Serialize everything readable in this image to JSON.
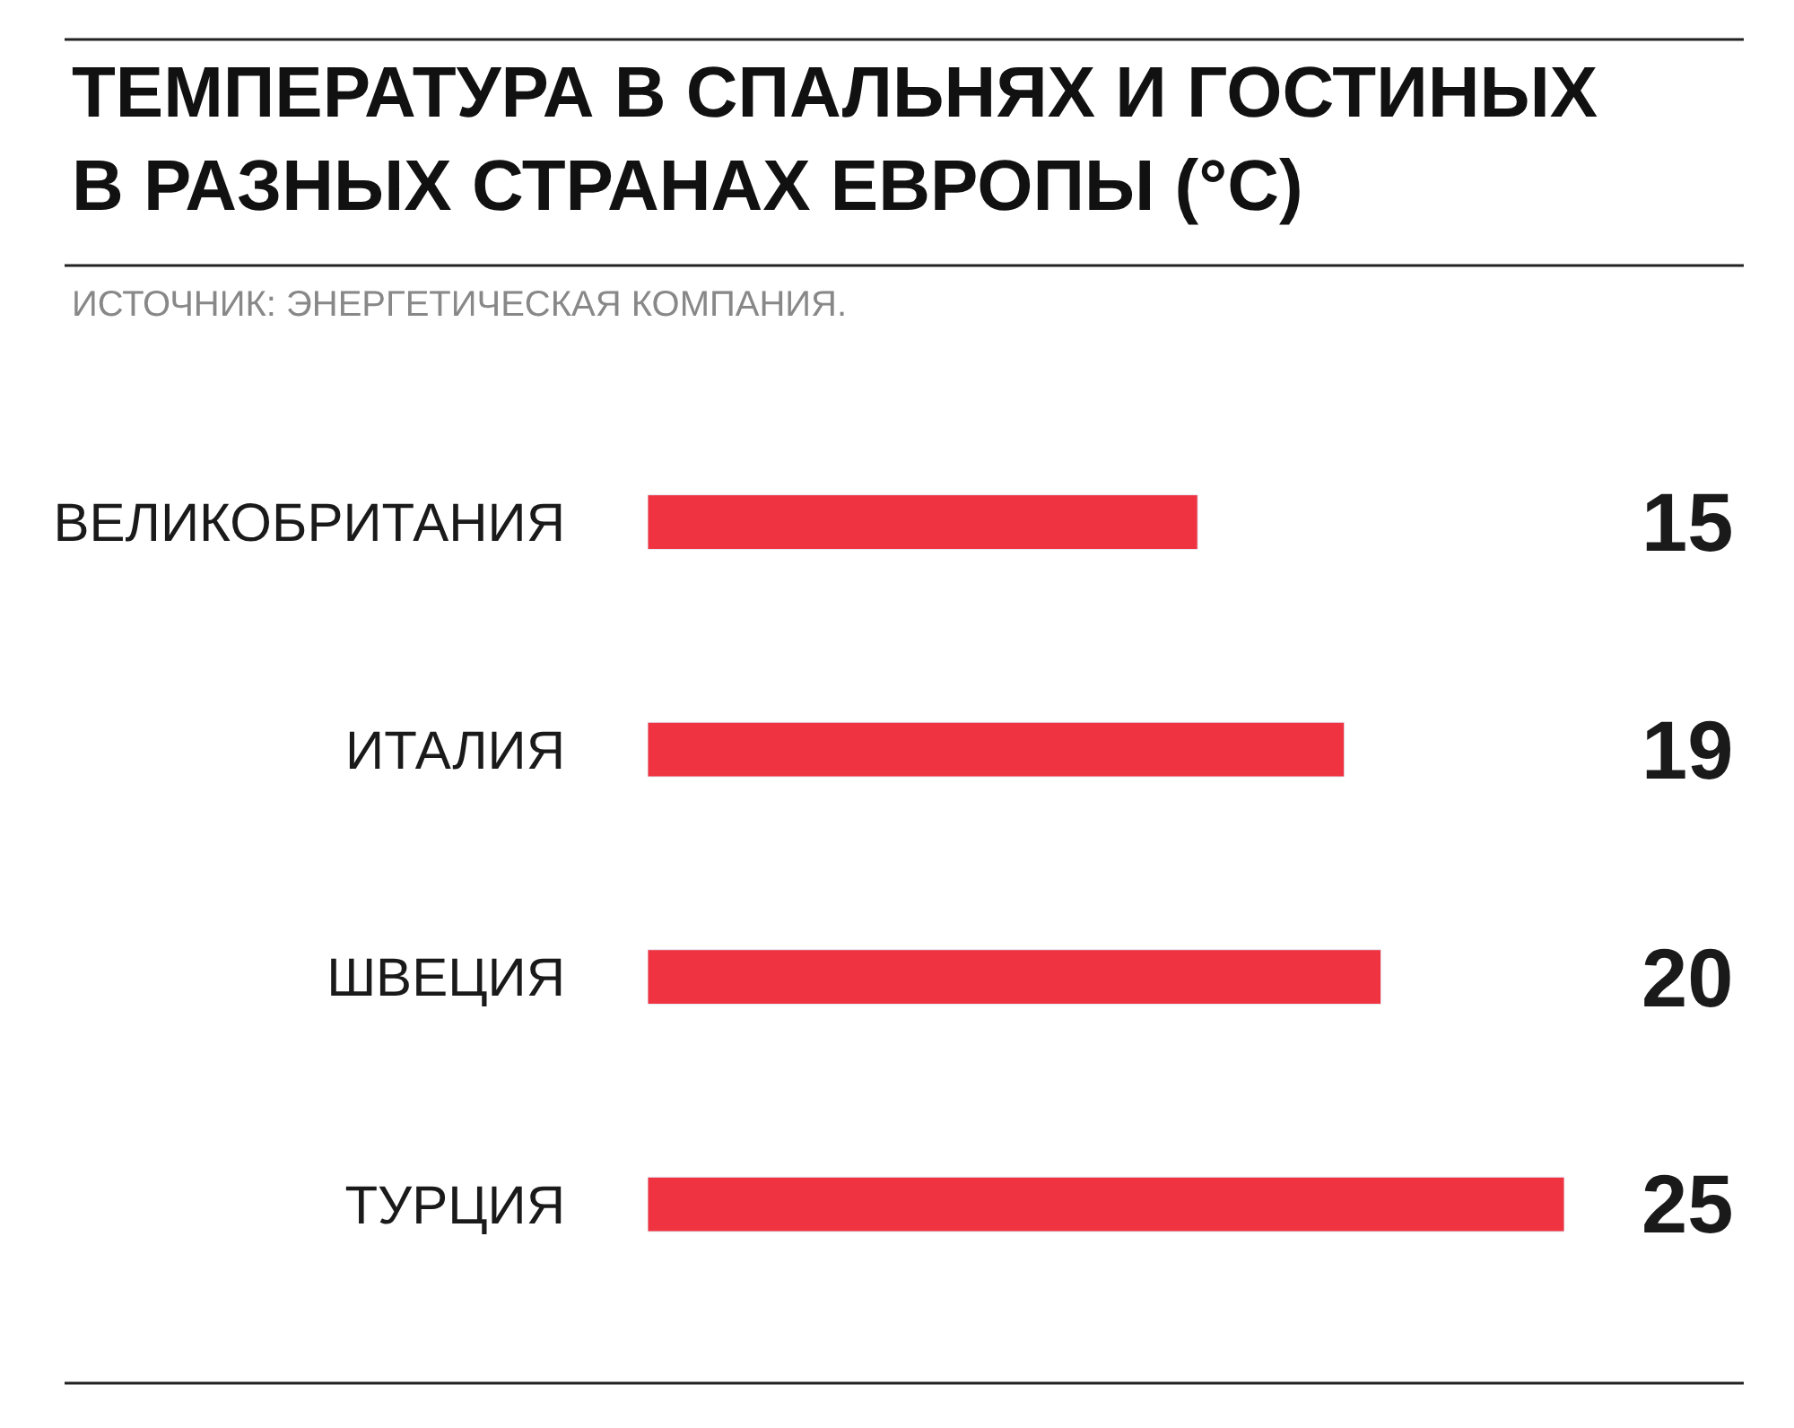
{
  "chart_data": {
    "type": "bar",
    "orientation": "horizontal",
    "title": "ТЕМПЕРАТУРА В СПАЛЬНЯХ И ГОСТИНЫХ В РАЗНЫХ СТРАНАХ ЕВРОПЫ (°C)",
    "annotations": [
      "ИСТОЧНИК: ЭНЕРГЕТИЧЕСКАЯ КОМПАНИЯ."
    ],
    "categories": [
      "ВЕЛИКОБРИТАНИЯ",
      "ИТАЛИЯ",
      "ШВЕЦИЯ",
      "ТУРЦИЯ"
    ],
    "values": [
      15,
      19,
      20,
      25
    ],
    "color": "#ef3340",
    "xlim": [
      0,
      25
    ],
    "data_labels": true,
    "legend": false,
    "tick_labels": "y"
  }
}
